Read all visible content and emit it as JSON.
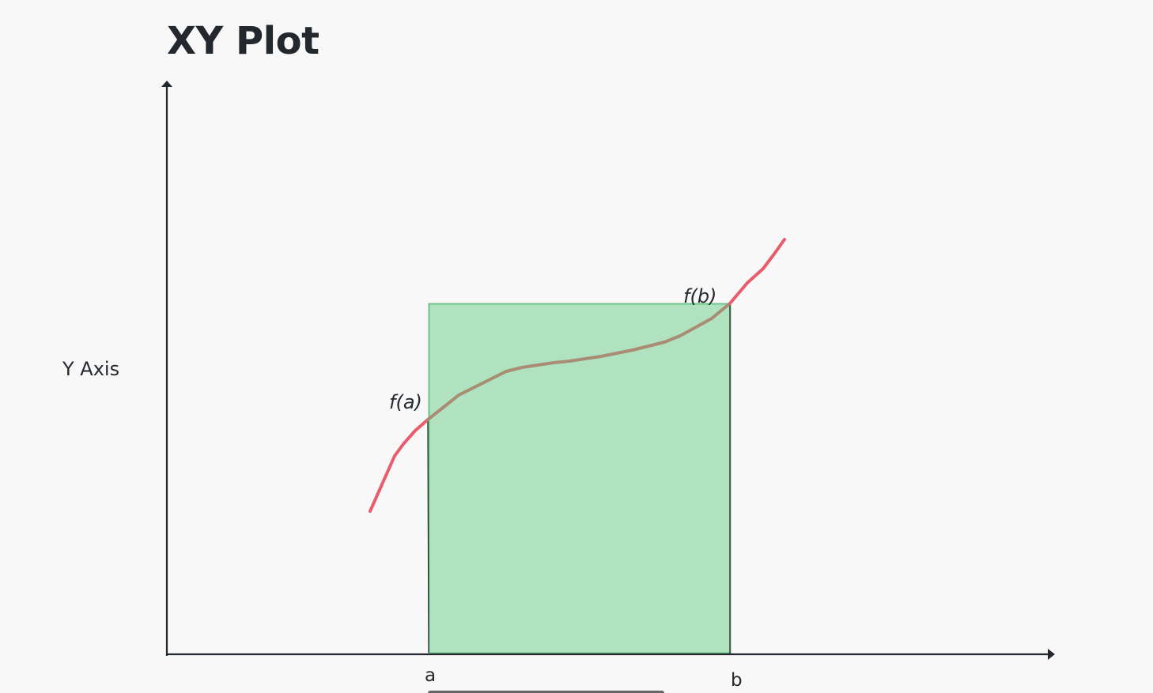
{
  "title": "XY Plot",
  "colors": {
    "background": "#f8f8f8",
    "axis": "#23272e",
    "curve": "#e85c6b",
    "curve_inside": "#a88c74",
    "rect_fill": "#b0e2c0",
    "rect_stroke": "#6cc48c"
  },
  "chart_data": {
    "type": "line",
    "title": "XY Plot",
    "xlabel": "",
    "ylabel": "Y Axis",
    "grid": false,
    "legend": "none",
    "x_tick_labels": [
      "a",
      "b"
    ],
    "annotations": [
      "f(a)",
      "f(b)"
    ],
    "series": [
      {
        "x": [
          0.0,
          0.5,
          1.0,
          1.3,
          2.0,
          3.0,
          4.0,
          5.0,
          6.0,
          7.0,
          8.0,
          9.0,
          10.0,
          10.8,
          11.5,
          12.0
        ],
        "y": [
          0.2,
          0.6,
          1.0,
          1.15,
          1.45,
          1.72,
          1.88,
          1.96,
          2.02,
          2.1,
          2.2,
          2.38,
          2.7,
          3.0,
          3.35,
          3.65
        ]
      }
    ],
    "shaded_region": {
      "x_from": "a",
      "x_to": "b",
      "height_label": "f(b)"
    }
  },
  "labels": {
    "y_axis": "Y Axis",
    "x_tick_a": "a",
    "x_tick_b": "b",
    "fa": "f(a)",
    "fb": "f(b)"
  }
}
